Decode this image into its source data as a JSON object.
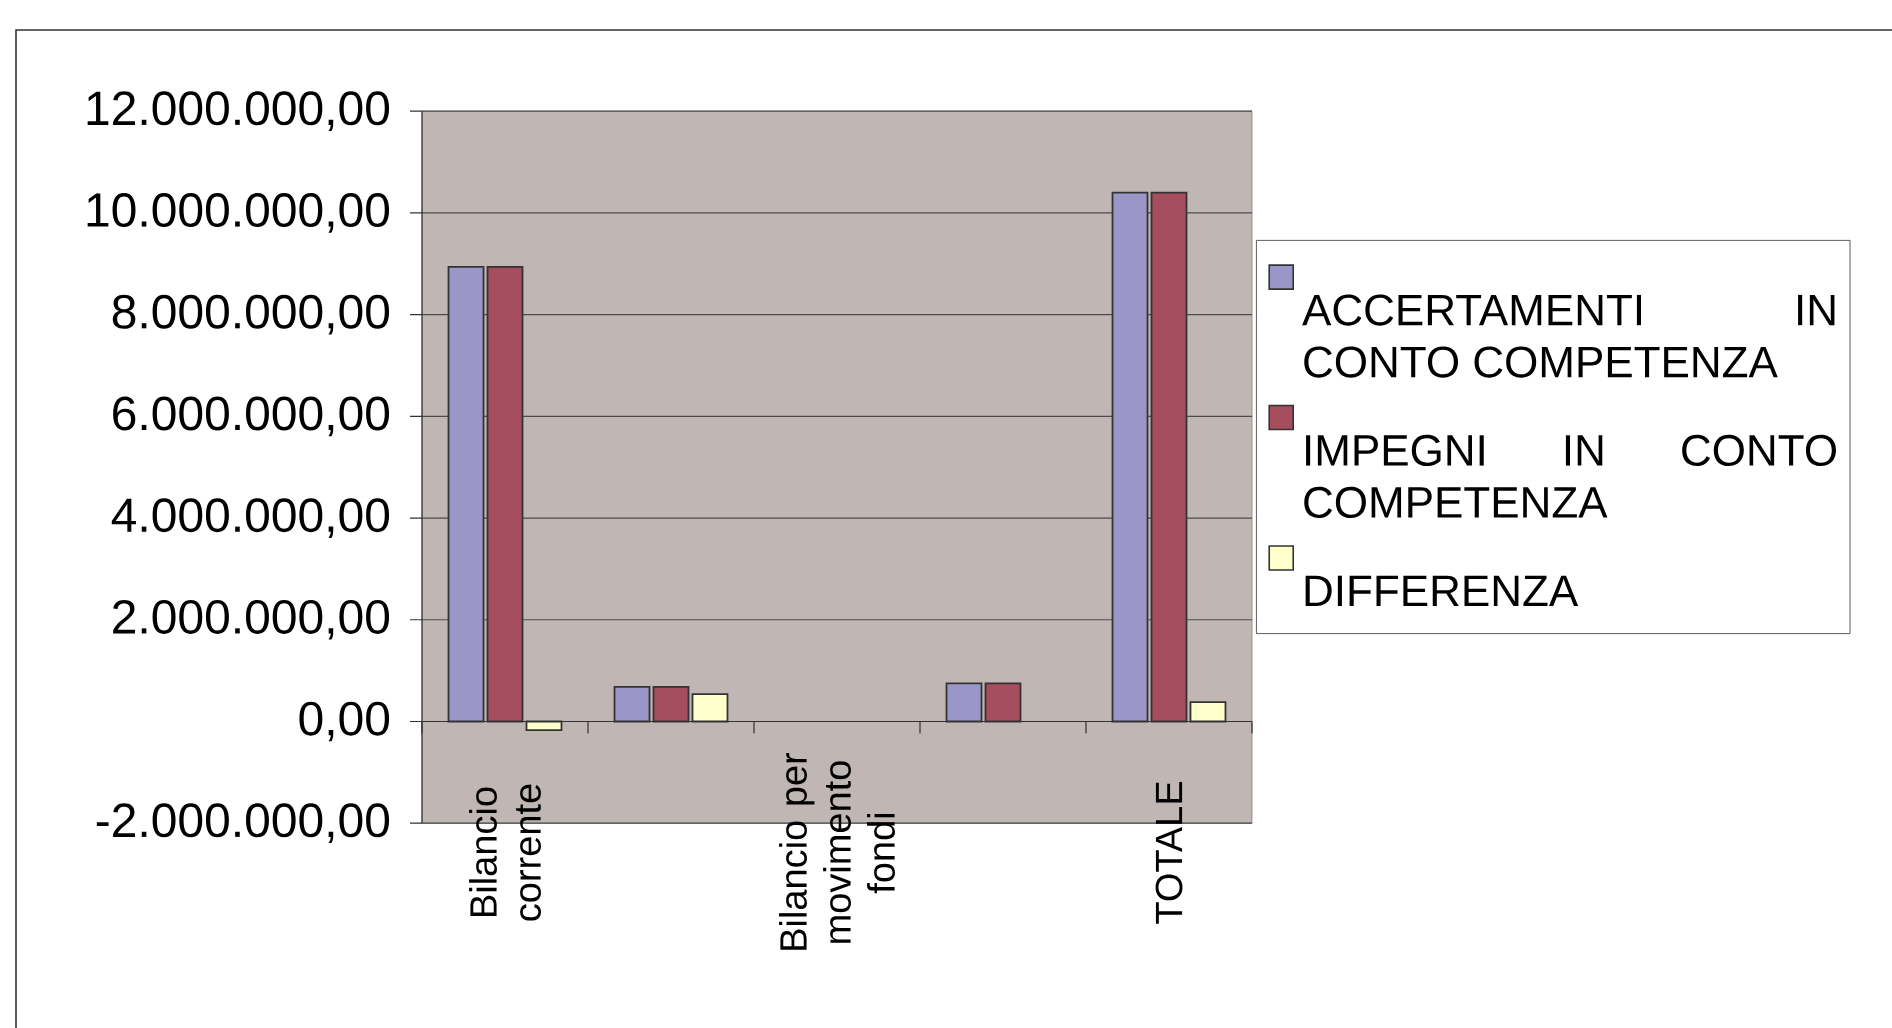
{
  "chart_data": {
    "type": "bar",
    "categories": [
      "Bilancio corrente",
      null,
      "Bilancio per movimento fondi",
      null,
      "TOTALE"
    ],
    "series": [
      {
        "name": "ACCERTAMENTI IN CONTO COMPETENZA",
        "color": "#9b96c8",
        "values": [
          8940000,
          680000,
          null,
          750000,
          10400000
        ]
      },
      {
        "name": "IMPEGNI IN CONTO COMPETENZA",
        "color": "#a64d5e",
        "values": [
          8940000,
          680000,
          null,
          750000,
          10400000
        ]
      },
      {
        "name": "DIFFERENZA",
        "color": "#ffffcc",
        "values": [
          -170000,
          540000,
          null,
          null,
          380000
        ]
      }
    ],
    "ylim": [
      -2000000,
      12000000
    ],
    "yticks": [
      {
        "value": -2000000,
        "label": "-2.000.000,00"
      },
      {
        "value": 0,
        "label": "0,00"
      },
      {
        "value": 2000000,
        "label": "2.000.000,00"
      },
      {
        "value": 4000000,
        "label": "4.000.000,00"
      },
      {
        "value": 6000000,
        "label": "6.000.000,00"
      },
      {
        "value": 8000000,
        "label": "8.000.000,00"
      },
      {
        "value": 10000000,
        "label": "10.000.000,00"
      },
      {
        "value": 12000000,
        "label": "12.000.000,00"
      }
    ],
    "grid": "y",
    "legend": "right"
  }
}
